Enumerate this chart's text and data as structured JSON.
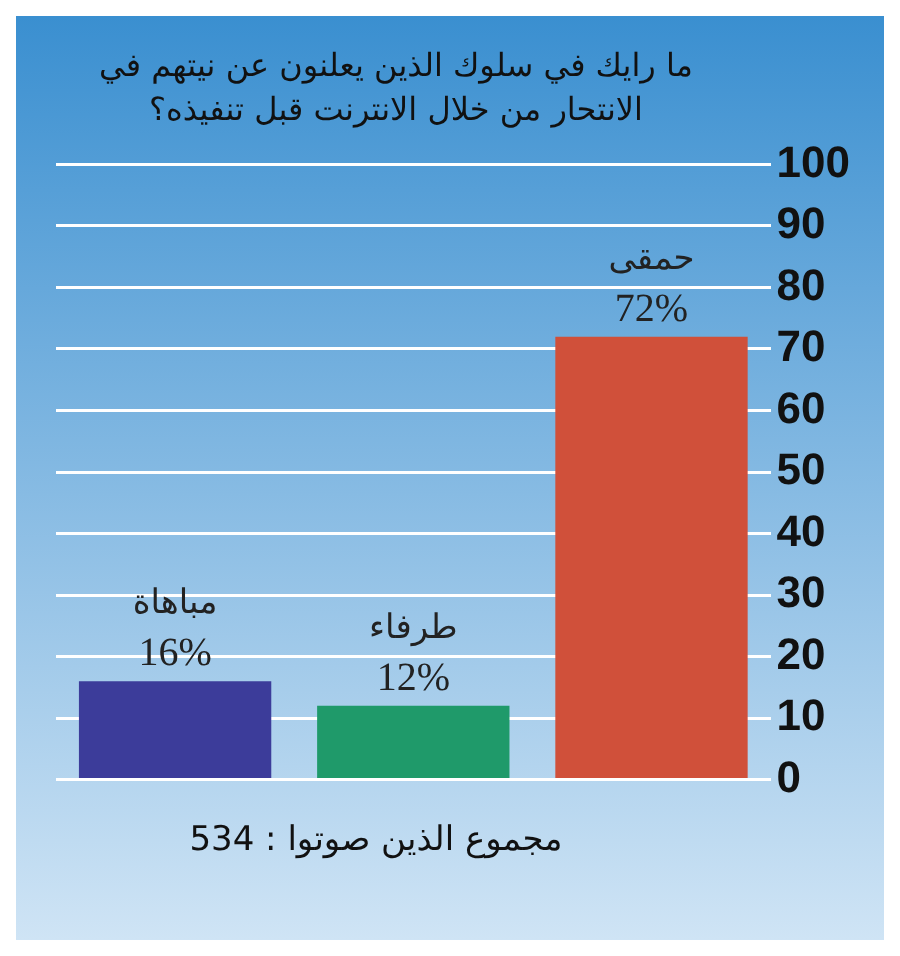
{
  "chart_data": {
    "type": "bar",
    "title": "ما رايك في سلوك الذين يعلنون عن نيتهم في الانتحار من خلال الانترنت قبل تنفيذه؟",
    "categories": [
      "مباهاة",
      "طرفاء",
      "حمقى"
    ],
    "values": [
      16,
      12,
      72
    ],
    "colors": [
      "#3c3c9a",
      "#1f9a6a",
      "#d0503a"
    ],
    "value_labels": [
      "16%",
      "12%",
      "72%"
    ],
    "ylim": [
      0,
      100
    ],
    "yticks": [
      0,
      10,
      20,
      30,
      40,
      50,
      60,
      70,
      80,
      90,
      100
    ],
    "grid": "y",
    "tick_labels": "y",
    "annotations": [
      "مجموع الذين صوتوا :  534"
    ]
  }
}
